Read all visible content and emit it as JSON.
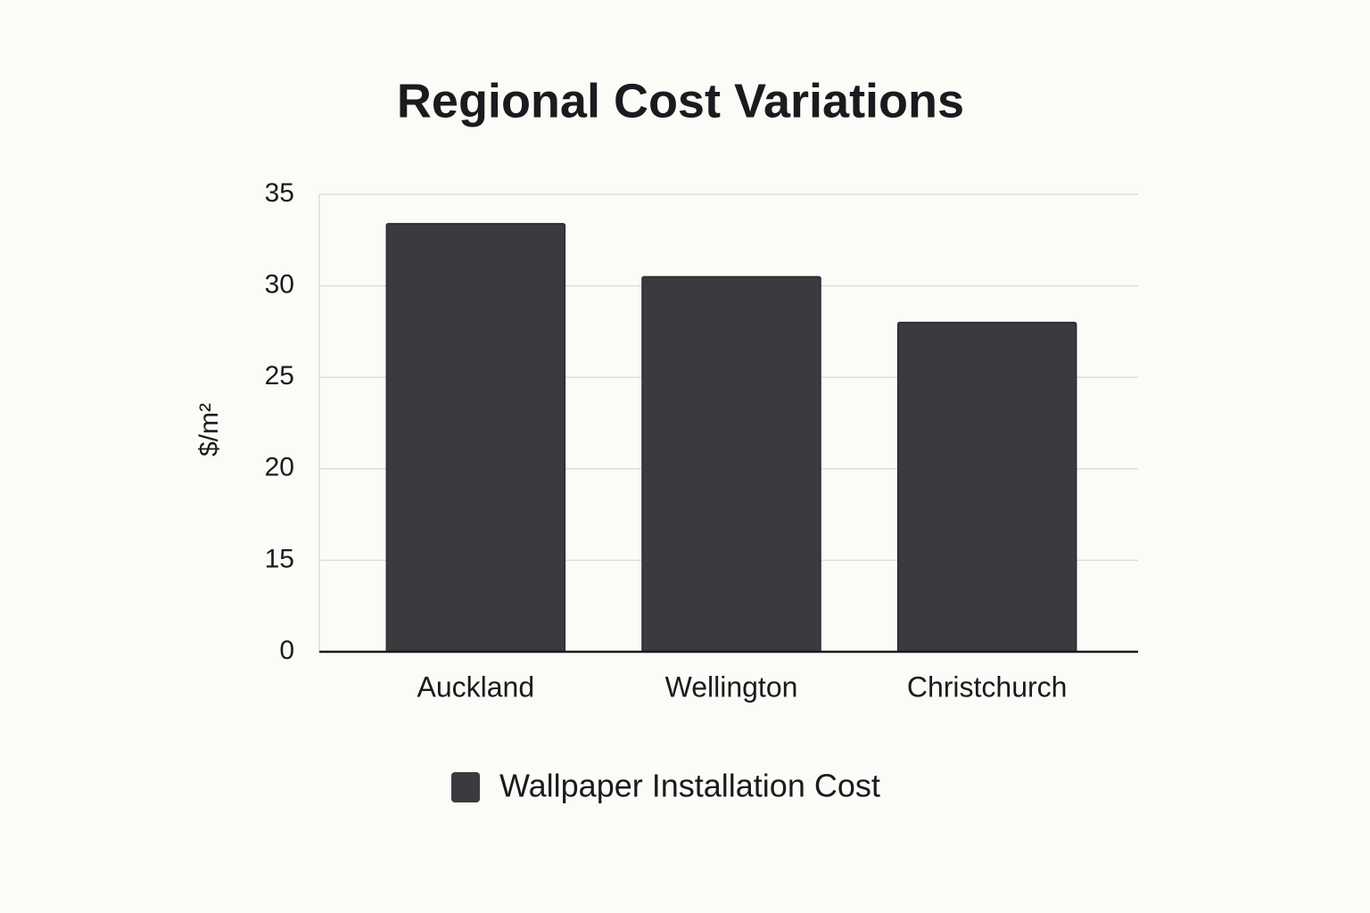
{
  "chart_data": {
    "type": "bar",
    "title": "Regional Cost Variations",
    "y_label": "$/m²",
    "categories": [
      "Auckland",
      "Wellington",
      "Christchurch"
    ],
    "series": [
      {
        "name": "Wallpaper Installation Cost",
        "color": "#3a3b3f",
        "values": [
          33.4,
          30.5,
          28.0
        ]
      }
    ],
    "ylim": [
      0,
      35
    ],
    "yticks": [
      0,
      15,
      20,
      25,
      30,
      35
    ],
    "grid": true,
    "legend": "bottom"
  }
}
